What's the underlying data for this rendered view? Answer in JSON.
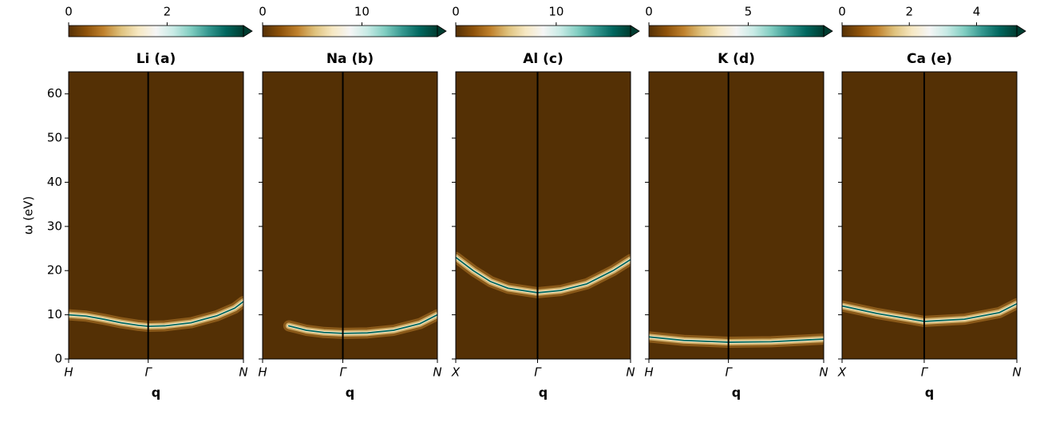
{
  "chart_data": [
    {
      "type": "heatmap",
      "title": "Li (a)",
      "xlabel": "q",
      "ylabel": "ω (eV)",
      "xlim": [
        0,
        1
      ],
      "xticks": [
        {
          "value": 0,
          "label": "H"
        },
        {
          "value": 0.455,
          "label": "Γ"
        },
        {
          "value": 1,
          "label": "N"
        }
      ],
      "ylim": [
        0,
        65
      ],
      "yticks": [
        0,
        10,
        20,
        30,
        40,
        50,
        60
      ],
      "show_ytick_labels": true,
      "clim": [
        0,
        3.55
      ],
      "cticks": [
        0,
        2
      ],
      "extend": "max",
      "colormap": [
        "#543005",
        "#8c510a",
        "#bf812d",
        "#dfc27d",
        "#f6e8c3",
        "#f5f5f5",
        "#c7eae5",
        "#80cdc1",
        "#35978f",
        "#01665e",
        "#003c30"
      ],
      "x": [
        0,
        0.1,
        0.2,
        0.3,
        0.4,
        0.455,
        0.55,
        0.7,
        0.85,
        0.95,
        1
      ],
      "values": [
        10,
        9.7,
        9,
        8.2,
        7.6,
        7.4,
        7.5,
        8.2,
        9.8,
        11.5,
        13
      ]
    },
    {
      "type": "heatmap",
      "title": "Na (b)",
      "xlabel": "q",
      "xlim": [
        0,
        1
      ],
      "xticks": [
        {
          "value": 0,
          "label": "H"
        },
        {
          "value": 0.459,
          "label": "Γ"
        },
        {
          "value": 1,
          "label": "N"
        }
      ],
      "ylim": [
        0,
        65
      ],
      "yticks": [
        0,
        10,
        20,
        30,
        40,
        50,
        60
      ],
      "show_ytick_labels": false,
      "clim": [
        0,
        17.6
      ],
      "cticks": [
        0,
        10
      ],
      "extend": "max",
      "colormap": [
        "#543005",
        "#8c510a",
        "#bf812d",
        "#dfc27d",
        "#f6e8c3",
        "#f5f5f5",
        "#c7eae5",
        "#80cdc1",
        "#35978f",
        "#01665e",
        "#003c30"
      ],
      "x": [
        0.15,
        0.25,
        0.35,
        0.459,
        0.6,
        0.75,
        0.9,
        1
      ],
      "values": [
        7.5,
        6.5,
        6,
        5.8,
        5.9,
        6.5,
        8,
        10
      ]
    },
    {
      "type": "heatmap",
      "title": "Al (c)",
      "xlabel": "q",
      "xlim": [
        0,
        1
      ],
      "xticks": [
        {
          "value": 0,
          "label": "X"
        },
        {
          "value": 0.468,
          "label": "Γ"
        },
        {
          "value": 1,
          "label": "N"
        }
      ],
      "ylim": [
        0,
        65
      ],
      "yticks": [
        0,
        10,
        20,
        30,
        40,
        50,
        60
      ],
      "show_ytick_labels": false,
      "clim": [
        0,
        17.4
      ],
      "cticks": [
        0,
        10
      ],
      "extend": "max",
      "colormap": [
        "#543005",
        "#8c510a",
        "#bf812d",
        "#dfc27d",
        "#f6e8c3",
        "#f5f5f5",
        "#c7eae5",
        "#80cdc1",
        "#35978f",
        "#01665e",
        "#003c30"
      ],
      "x": [
        0,
        0.1,
        0.2,
        0.3,
        0.468,
        0.6,
        0.75,
        0.9,
        1
      ],
      "values": [
        23,
        20,
        17.5,
        16,
        15,
        15.5,
        17,
        20,
        22.5
      ]
    },
    {
      "type": "heatmap",
      "title": "K (d)",
      "xlabel": "q",
      "xlim": [
        0,
        1
      ],
      "xticks": [
        {
          "value": 0,
          "label": "H"
        },
        {
          "value": 0.455,
          "label": "Γ"
        },
        {
          "value": 1,
          "label": "N"
        }
      ],
      "ylim": [
        0,
        65
      ],
      "yticks": [
        0,
        10,
        20,
        30,
        40,
        50,
        60
      ],
      "show_ytick_labels": false,
      "clim": [
        0,
        8.8
      ],
      "cticks": [
        0,
        5
      ],
      "extend": "max",
      "colormap": [
        "#543005",
        "#8c510a",
        "#bf812d",
        "#dfc27d",
        "#f6e8c3",
        "#f5f5f5",
        "#c7eae5",
        "#80cdc1",
        "#35978f",
        "#01665e",
        "#003c30"
      ],
      "x": [
        0,
        0.2,
        0.455,
        0.7,
        1
      ],
      "values": [
        5,
        4.2,
        3.8,
        3.9,
        4.5
      ]
    },
    {
      "type": "heatmap",
      "title": "Ca (e)",
      "xlabel": "q",
      "xlim": [
        0,
        1
      ],
      "xticks": [
        {
          "value": 0,
          "label": "X"
        },
        {
          "value": 0.47,
          "label": "Γ"
        },
        {
          "value": 1,
          "label": "N"
        }
      ],
      "ylim": [
        0,
        65
      ],
      "yticks": [
        0,
        10,
        20,
        30,
        40,
        50,
        60
      ],
      "show_ytick_labels": false,
      "clim": [
        0,
        5.2
      ],
      "cticks": [
        0,
        2,
        4
      ],
      "extend": "max",
      "colormap": [
        "#543005",
        "#8c510a",
        "#bf812d",
        "#dfc27d",
        "#f6e8c3",
        "#f5f5f5",
        "#c7eae5",
        "#80cdc1",
        "#35978f",
        "#01665e",
        "#003c30"
      ],
      "x": [
        0,
        0.2,
        0.47,
        0.7,
        0.9,
        1
      ],
      "values": [
        12,
        10.3,
        8.5,
        9,
        10.5,
        12.5
      ]
    }
  ]
}
